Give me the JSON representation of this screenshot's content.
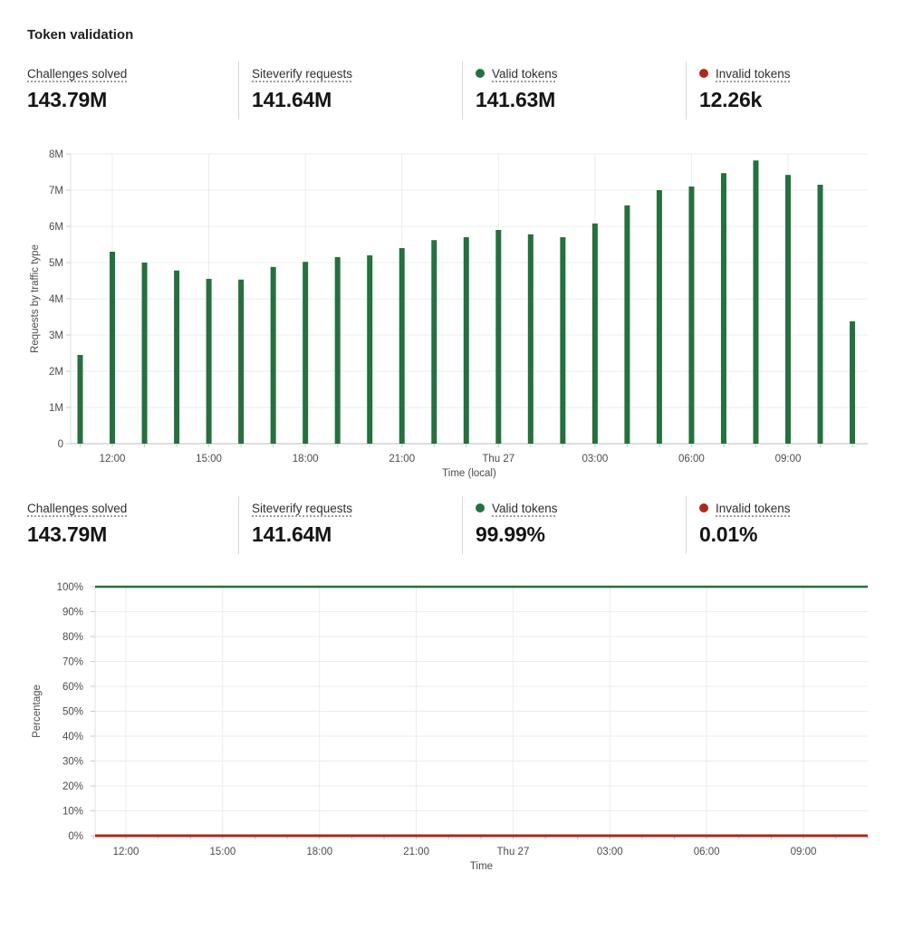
{
  "title": "Token validation",
  "colors": {
    "green": "#24703f",
    "red": "#b0271b",
    "red_line": "#a62b19"
  },
  "stats_top": [
    {
      "label": "Challenges solved",
      "value": "143.79M"
    },
    {
      "label": "Siteverify requests",
      "value": "141.64M"
    },
    {
      "label": "Valid tokens",
      "value": "141.63M",
      "dot": "#24703f"
    },
    {
      "label": "Invalid tokens",
      "value": "12.26k",
      "dot": "#b0271b"
    }
  ],
  "stats_bottom": [
    {
      "label": "Challenges solved",
      "value": "143.79M"
    },
    {
      "label": "Siteverify requests",
      "value": "141.64M"
    },
    {
      "label": "Valid tokens",
      "value": "99.99%",
      "dot": "#24703f"
    },
    {
      "label": "Invalid tokens",
      "value": "0.01%",
      "dot": "#b0271b"
    }
  ],
  "chart_data": [
    {
      "type": "bar",
      "ylabel": "Requests by traffic type",
      "xlabel": "Time (local)",
      "ylim": [
        0,
        8000000
      ],
      "ytick_labels": [
        "0",
        "1M",
        "2M",
        "3M",
        "4M",
        "5M",
        "6M",
        "7M",
        "8M"
      ],
      "xtick_labels": [
        "12:00",
        "15:00",
        "18:00",
        "21:00",
        "Thu 27",
        "03:00",
        "06:00",
        "09:00"
      ],
      "grid": true,
      "bar_color": "#24703f",
      "series_name": "Requests",
      "x_hours": [
        "11:00",
        "12:00",
        "13:00",
        "14:00",
        "15:00",
        "16:00",
        "17:00",
        "18:00",
        "19:00",
        "20:00",
        "21:00",
        "22:00",
        "23:00",
        "00:00",
        "01:00",
        "02:00",
        "03:00",
        "04:00",
        "05:00",
        "06:00",
        "07:00",
        "08:00",
        "09:00",
        "10:00",
        "11:00"
      ],
      "values": [
        2450000,
        5300000,
        5000000,
        4780000,
        4550000,
        4530000,
        4880000,
        5020000,
        5150000,
        5200000,
        5400000,
        5620000,
        5700000,
        5900000,
        5780000,
        5700000,
        6080000,
        6580000,
        7000000,
        7100000,
        7470000,
        7820000,
        7420000,
        7150000,
        3380000
      ]
    },
    {
      "type": "line",
      "ylabel": "Percentage",
      "xlabel": "Time",
      "ylim": [
        0,
        100
      ],
      "ytick_labels": [
        "0%",
        "10%",
        "20%",
        "30%",
        "40%",
        "50%",
        "60%",
        "70%",
        "80%",
        "90%",
        "100%"
      ],
      "xtick_labels": [
        "12:00",
        "15:00",
        "18:00",
        "21:00",
        "Thu 27",
        "03:00",
        "06:00",
        "09:00"
      ],
      "grid": true,
      "series": [
        {
          "name": "Valid tokens",
          "color": "#24703f",
          "value": 99.99
        },
        {
          "name": "Invalid tokens",
          "color": "#a62b19",
          "value": 0.01
        }
      ]
    }
  ]
}
